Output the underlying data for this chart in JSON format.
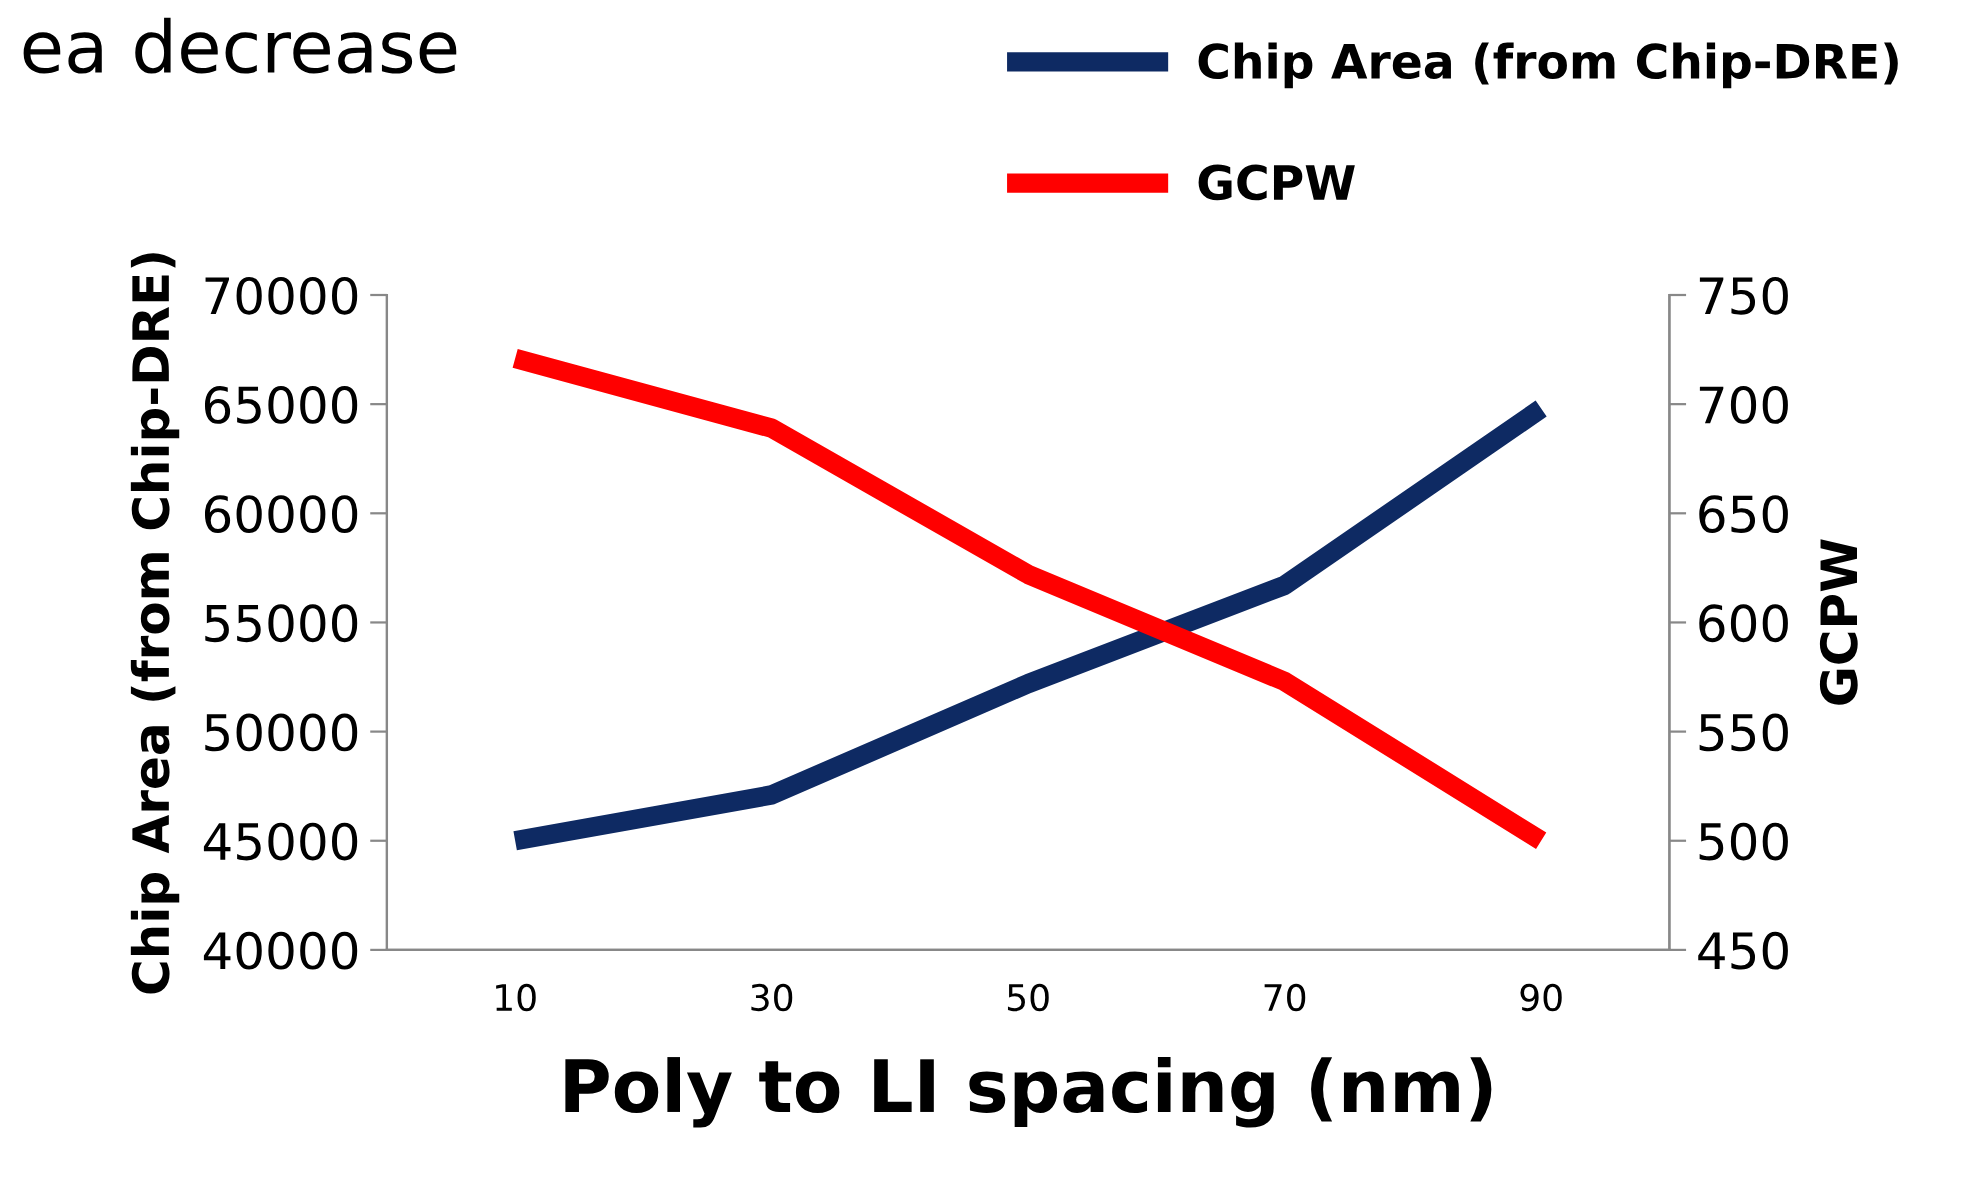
{
  "chart_data": {
    "type": "line",
    "xlabel": "Poly to LI spacing (nm)",
    "ylabel": "Chip Area (from Chip-DRE)",
    "y2label": "GCPW",
    "annotations": [
      "ea decrease"
    ],
    "categories": [
      "10",
      "30",
      "50",
      "70",
      "90"
    ],
    "series": [
      {
        "name": "Chip Area (from Chip-DRE)",
        "color": "#0e2a63",
        "values": [
          45000,
          47100,
          52200,
          56700,
          64800
        ]
      },
      {
        "name": "GCPW",
        "color": "#ff0000",
        "axis": "y2",
        "values": [
          721,
          689,
          622,
          573,
          500
        ]
      }
    ],
    "ylim": [
      40000,
      70000
    ],
    "yticks": [
      40000,
      45000,
      50000,
      55000,
      60000,
      65000,
      70000
    ],
    "y2lim": [
      450,
      750
    ],
    "y2ticks": [
      450,
      500,
      550,
      600,
      650,
      700,
      750
    ],
    "grid": false,
    "legend": "top right",
    "marker": "none",
    "line_style": "solid"
  }
}
